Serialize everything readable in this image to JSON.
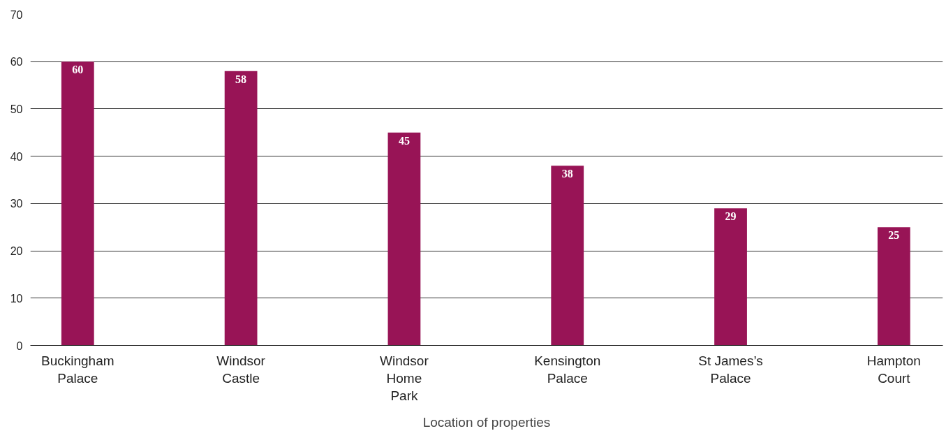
{
  "chart_data": {
    "type": "bar",
    "xlabel": "Location of properties",
    "categories": [
      "Buckingham\nPalace",
      "Windsor\nCastle",
      "Windsor\nHome\nPark",
      "Kensington\nPalace",
      "St James’s\nPalace",
      "Hampton\nCourt"
    ],
    "values": [
      60,
      58,
      45,
      38,
      29,
      25
    ],
    "color": "#981456",
    "ylim": [
      0,
      70
    ],
    "yticks": [
      0,
      10,
      20,
      30,
      40,
      50,
      60,
      70
    ],
    "grid": "y",
    "data_labels": true
  }
}
